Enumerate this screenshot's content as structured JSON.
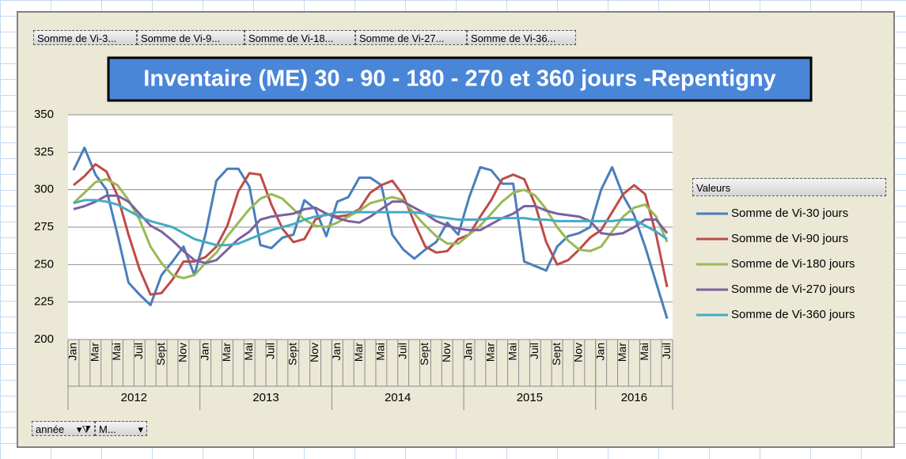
{
  "toolbar": {
    "buttons": [
      "Somme de Vi-3...",
      "Somme de Vi-9...",
      "Somme de Vi-18...",
      "Somme de Vi-27...",
      "Somme de Vi-36..."
    ]
  },
  "filters": {
    "buttons": [
      "année",
      "M..."
    ]
  },
  "chart_data": {
    "type": "line",
    "title": "Inventaire (ME) 30 - 90 - 180 - 270 et 360 jours -Repentigny",
    "categories": [
      "Jan",
      null,
      "Mar",
      null,
      "Mai",
      null,
      "Juil",
      null,
      "Sept",
      null,
      "Nov",
      null,
      "Jan",
      null,
      "Mar",
      null,
      "Mai",
      null,
      "Juil",
      null,
      "Sept",
      null,
      "Nov",
      null,
      "Jan",
      null,
      "Mar",
      null,
      "Mai",
      null,
      "Juil",
      null,
      "Sept",
      null,
      "Nov",
      null,
      "Jan",
      null,
      "Mar",
      null,
      "Mai",
      null,
      "Juil",
      null,
      "Sept",
      null,
      "Nov",
      null,
      "Jan",
      null,
      "Mar",
      null,
      "Mai",
      null,
      "Juil"
    ],
    "year_groups": [
      "2012",
      "2013",
      "2014",
      "2015",
      "2016"
    ],
    "legend_title": "Valeurs",
    "legend": "right",
    "grid": true,
    "ylim": [
      200,
      350
    ],
    "yticks": [
      200,
      225,
      250,
      275,
      300,
      325,
      350
    ],
    "series": [
      {
        "name": "Somme de Vi-30 jours",
        "color": "#4a7ebb",
        "values": [
          313,
          328,
          310,
          300,
          270,
          238,
          230,
          223,
          243,
          252,
          262,
          243,
          270,
          306,
          314,
          314,
          302,
          263,
          261,
          268,
          270,
          293,
          287,
          269,
          292,
          295,
          308,
          308,
          303,
          270,
          260,
          254,
          260,
          265,
          278,
          270,
          295,
          315,
          313,
          304,
          304,
          252,
          249,
          246,
          262,
          269,
          271,
          275,
          300,
          315,
          296,
          283,
          262,
          238,
          214
        ]
      },
      {
        "name": "Somme de Vi-90 jours",
        "color": "#be4b48",
        "values": [
          303,
          309,
          317,
          312,
          296,
          270,
          247,
          230,
          231,
          240,
          252,
          252,
          255,
          262,
          276,
          299,
          311,
          310,
          290,
          274,
          265,
          267,
          280,
          284,
          282,
          283,
          287,
          298,
          303,
          306,
          296,
          278,
          262,
          258,
          259,
          267,
          270,
          282,
          293,
          307,
          310,
          307,
          290,
          265,
          250,
          253,
          260,
          268,
          273,
          285,
          297,
          303,
          297,
          270,
          235
        ]
      },
      {
        "name": "Somme de Vi-180 jours",
        "color": "#98b954",
        "values": [
          291,
          298,
          305,
          307,
          303,
          293,
          280,
          262,
          251,
          243,
          241,
          243,
          251,
          258,
          269,
          278,
          287,
          294,
          297,
          294,
          287,
          280,
          276,
          275,
          278,
          282,
          286,
          291,
          293,
          295,
          293,
          284,
          276,
          269,
          264,
          264,
          270,
          276,
          284,
          292,
          298,
          300,
          296,
          287,
          275,
          266,
          260,
          259,
          262,
          272,
          282,
          288,
          290,
          282,
          265
        ]
      },
      {
        "name": "Somme de Vi-270 jours",
        "color": "#7d60a0",
        "values": [
          287,
          289,
          292,
          296,
          296,
          292,
          284,
          276,
          272,
          266,
          259,
          253,
          251,
          253,
          260,
          267,
          272,
          280,
          282,
          283,
          284,
          287,
          288,
          284,
          281,
          279,
          278,
          282,
          287,
          292,
          292,
          288,
          284,
          279,
          276,
          274,
          273,
          273,
          277,
          281,
          284,
          289,
          289,
          286,
          284,
          283,
          282,
          279,
          271,
          270,
          271,
          275,
          280,
          280,
          271
        ]
      },
      {
        "name": "Somme de Vi-360 jours",
        "color": "#46aac5",
        "values": [
          291,
          293,
          293,
          292,
          290,
          286,
          282,
          279,
          277,
          275,
          271,
          267,
          265,
          263,
          263,
          264,
          267,
          270,
          273,
          275,
          277,
          280,
          282,
          283,
          285,
          285,
          285,
          285,
          285,
          285,
          285,
          285,
          284,
          282,
          281,
          280,
          280,
          280,
          281,
          281,
          281,
          281,
          280,
          280,
          279,
          279,
          279,
          279,
          279,
          279,
          280,
          280,
          276,
          272,
          267
        ]
      }
    ]
  }
}
